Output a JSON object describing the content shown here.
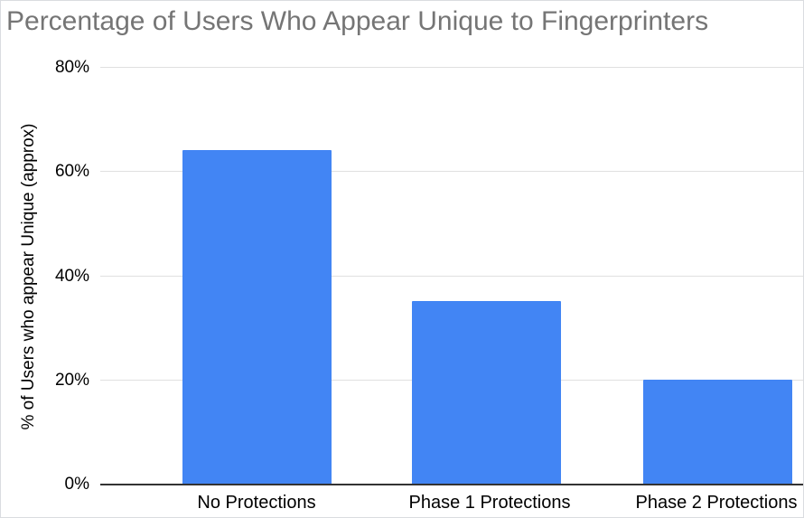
{
  "chart_data": {
    "type": "bar",
    "title": "Percentage of Users Who Appear Unique to Fingerprinters",
    "xlabel": "",
    "ylabel": "% of Users who appear Unique (approx)",
    "categories": [
      "No Protections",
      "Phase 1 Protections",
      "Phase 2 Protections"
    ],
    "values": [
      64,
      35,
      20
    ],
    "ylim": [
      0,
      80
    ],
    "yticks": [
      0,
      20,
      40,
      60,
      80
    ],
    "ytick_labels": [
      "0%",
      "20%",
      "40%",
      "60%",
      "80%"
    ],
    "grid": true,
    "legend": "none",
    "colors": {
      "bar": "#4285f4",
      "title": "#757575",
      "gridline": "#e0e0e0",
      "axis_line": "#333333",
      "tick_text": "#000000",
      "background": "#ffffff"
    }
  }
}
